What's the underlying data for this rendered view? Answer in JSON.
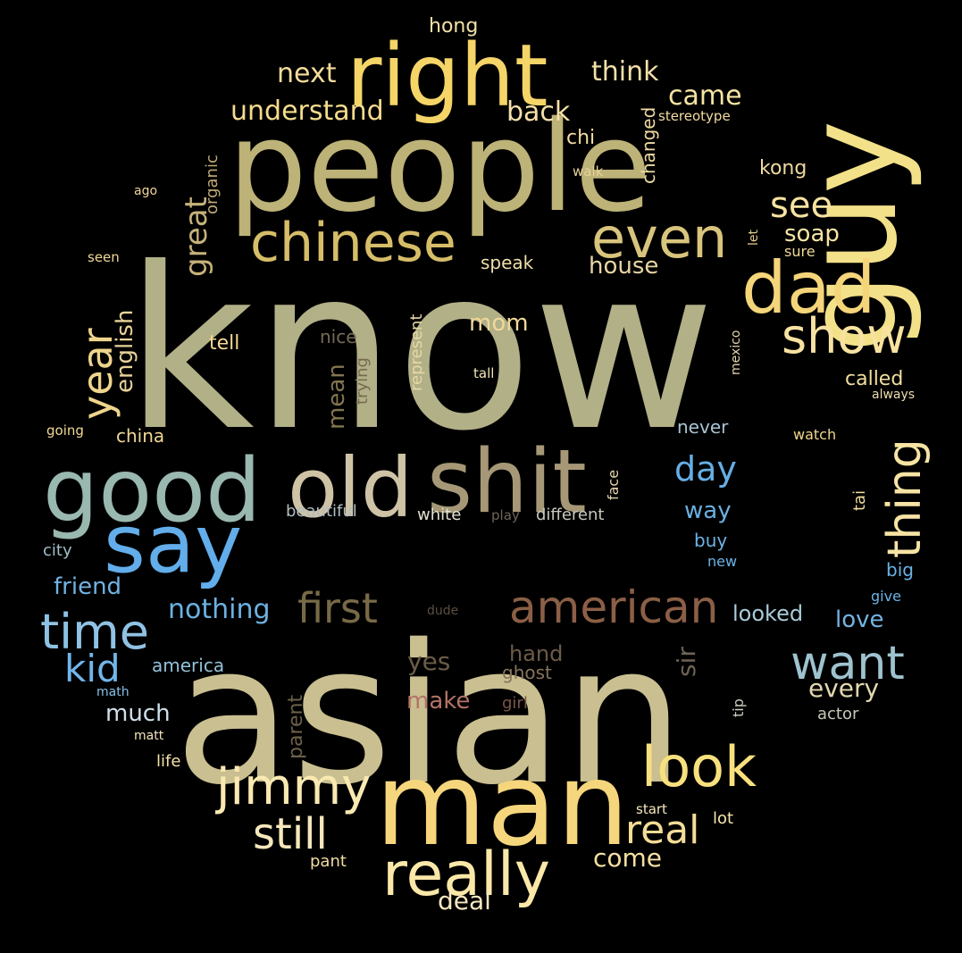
{
  "words": [
    {
      "id": "know",
      "text": "know",
      "color": "#b1b087"
    },
    {
      "id": "asian",
      "text": "asian",
      "color": "#c9bf90"
    },
    {
      "id": "people",
      "text": "people",
      "color": "#bdb277"
    },
    {
      "id": "guy",
      "text": "guy",
      "color": "#f3e18a"
    },
    {
      "id": "man",
      "text": "man",
      "color": "#f5d67c"
    },
    {
      "id": "right",
      "text": "right",
      "color": "#f5d468"
    },
    {
      "id": "good",
      "text": "good",
      "color": "#99b8b0"
    },
    {
      "id": "shit",
      "text": "shit",
      "color": "#a69876"
    },
    {
      "id": "old",
      "text": "old",
      "color": "#cfc3a6"
    },
    {
      "id": "say",
      "text": "say",
      "color": "#62adea"
    },
    {
      "id": "really",
      "text": "really",
      "color": "#fbe8a8"
    },
    {
      "id": "dad",
      "text": "dad",
      "color": "#f5d57a"
    },
    {
      "id": "chinese",
      "text": "chinese",
      "color": "#d6bd68"
    },
    {
      "id": "even",
      "text": "even",
      "color": "#d8c47c"
    },
    {
      "id": "look",
      "text": "look",
      "color": "#f8e07e"
    },
    {
      "id": "jimmy",
      "text": "jimmy",
      "color": "#f9e9b1"
    },
    {
      "id": "american",
      "text": "american",
      "color": "#8b5f46"
    },
    {
      "id": "time",
      "text": "time",
      "color": "#8fc2e4"
    },
    {
      "id": "want",
      "text": "want",
      "color": "#9ec3cf"
    },
    {
      "id": "show",
      "text": "show",
      "color": "#f7e2a1"
    },
    {
      "id": "thing",
      "text": "thing",
      "color": "#f7e4a4"
    },
    {
      "id": "first",
      "text": "first",
      "color": "#786a46"
    },
    {
      "id": "year",
      "text": "year",
      "color": "#eed58c"
    },
    {
      "id": "still",
      "text": "still",
      "color": "#f6e7bb"
    },
    {
      "id": "real",
      "text": "real",
      "color": "#f3dc97"
    },
    {
      "id": "kid",
      "text": "kid",
      "color": "#72b6ea"
    },
    {
      "id": "see",
      "text": "see",
      "color": "#f6e3a1"
    },
    {
      "id": "day",
      "text": "day",
      "color": "#66aee6"
    },
    {
      "id": "great",
      "text": "great",
      "color": "#c6b27a"
    },
    {
      "id": "understand",
      "text": "understand",
      "color": "#f5dc8c"
    },
    {
      "id": "think",
      "text": "think",
      "color": "#f3dfa8"
    },
    {
      "id": "next",
      "text": "next",
      "color": "#f3dc99"
    },
    {
      "id": "came",
      "text": "came",
      "color": "#f5e3a2"
    },
    {
      "id": "back",
      "text": "back",
      "color": "#f3e0a9"
    },
    {
      "id": "nothing",
      "text": "nothing",
      "color": "#6cb1e0"
    },
    {
      "id": "english",
      "text": "english",
      "color": "#e8d29a"
    },
    {
      "id": "every",
      "text": "every",
      "color": "#e2d8af"
    },
    {
      "id": "mom",
      "text": "mom",
      "color": "#f0d99a"
    },
    {
      "id": "mean",
      "text": "mean",
      "color": "#847550"
    },
    {
      "id": "house",
      "text": "house",
      "color": "#e8d5a4"
    },
    {
      "id": "soap",
      "text": "soap",
      "color": "#f8e4a4"
    },
    {
      "id": "much",
      "text": "much",
      "color": "#cfe0ea"
    },
    {
      "id": "friend",
      "text": "friend",
      "color": "#71b3e4"
    },
    {
      "id": "love",
      "text": "love",
      "color": "#73b4e2"
    },
    {
      "id": "come",
      "text": "come",
      "color": "#f4e0a1"
    },
    {
      "id": "deal",
      "text": "deal",
      "color": "#f6e8bf"
    },
    {
      "id": "way",
      "text": "way",
      "color": "#6ab0e2"
    },
    {
      "id": "looked",
      "text": "looked",
      "color": "#a9ccd9"
    },
    {
      "id": "make",
      "text": "make",
      "color": "#b37367"
    },
    {
      "id": "yes",
      "text": "yes",
      "color": "#6a5c47"
    },
    {
      "id": "hand",
      "text": "hand",
      "color": "#6d5b49"
    },
    {
      "id": "sir",
      "text": "sir",
      "color": "#6e6352"
    },
    {
      "id": "kong",
      "text": "kong",
      "color": "#f0d9a0"
    },
    {
      "id": "chi",
      "text": "chi",
      "color": "#f2dca4"
    },
    {
      "id": "hong",
      "text": "hong",
      "color": "#f3e1a8"
    },
    {
      "id": "tell",
      "text": "tell",
      "color": "#f3d790"
    },
    {
      "id": "parent",
      "text": "parent",
      "color": "#6c6149"
    },
    {
      "id": "called",
      "text": "called",
      "color": "#f1df9e"
    },
    {
      "id": "speak",
      "text": "speak",
      "color": "#f1dfaa"
    },
    {
      "id": "ghost",
      "text": "ghost",
      "color": "#85735a"
    },
    {
      "id": "nice",
      "text": "nice",
      "color": "#756a54"
    },
    {
      "id": "changed",
      "text": "changed",
      "color": "#eed9a2"
    },
    {
      "id": "organic",
      "text": "organic",
      "color": "#bfa978"
    },
    {
      "id": "china",
      "text": "china",
      "color": "#efd792"
    },
    {
      "id": "america",
      "text": "america",
      "color": "#94c1da"
    },
    {
      "id": "never",
      "text": "never",
      "color": "#a7c4d6"
    },
    {
      "id": "buy",
      "text": "buy",
      "color": "#6ab3e6"
    },
    {
      "id": "big",
      "text": "big",
      "color": "#6ab3e6"
    },
    {
      "id": "beautiful",
      "text": "beautiful",
      "color": "#b1bcc2"
    },
    {
      "id": "white",
      "text": "white",
      "color": "#e3e1d0"
    },
    {
      "id": "different",
      "text": "different",
      "color": "#c8c7bc"
    },
    {
      "id": "city",
      "text": "city",
      "color": "#a1bfc8"
    },
    {
      "id": "actor",
      "text": "actor",
      "color": "#c8c8b8"
    },
    {
      "id": "represent",
      "text": "represent",
      "color": "#e8d8a5"
    },
    {
      "id": "trying",
      "text": "trying",
      "color": "#766a52"
    },
    {
      "id": "girl",
      "text": "girl",
      "color": "#7a5649"
    },
    {
      "id": "life",
      "text": "life",
      "color": "#f3e1a5"
    },
    {
      "id": "pant",
      "text": "pant",
      "color": "#f1dc9f"
    },
    {
      "id": "lot",
      "text": "lot",
      "color": "#f7e6ad"
    },
    {
      "id": "tai",
      "text": "tai",
      "color": "#f0dc9f"
    },
    {
      "id": "face",
      "text": "face",
      "color": "#e6d6aa"
    },
    {
      "id": "tip",
      "text": "tip",
      "color": "#d1d0c1"
    },
    {
      "id": "new",
      "text": "new",
      "color": "#6ab3e6"
    },
    {
      "id": "give",
      "text": "give",
      "color": "#6ab3e6"
    },
    {
      "id": "watch",
      "text": "watch",
      "color": "#f0d68c"
    },
    {
      "id": "sure",
      "text": "sure",
      "color": "#f0d99a"
    },
    {
      "id": "let",
      "text": "let",
      "color": "#e6cd8b"
    },
    {
      "id": "stereotype",
      "text": "stereotype",
      "color": "#f3dca0"
    },
    {
      "id": "walk",
      "text": "walk",
      "color": "#e6d39b"
    },
    {
      "id": "ago",
      "text": "ago",
      "color": "#f0d69a"
    },
    {
      "id": "seen",
      "text": "seen",
      "color": "#f2d896"
    },
    {
      "id": "going",
      "text": "going",
      "color": "#f3d993"
    },
    {
      "id": "tall",
      "text": "tall",
      "color": "#f3e3b7"
    },
    {
      "id": "mexico",
      "text": "mexico",
      "color": "#e3d4a8"
    },
    {
      "id": "always",
      "text": "always",
      "color": "#efdcb0"
    },
    {
      "id": "play",
      "text": "play",
      "color": "#6e6658"
    },
    {
      "id": "dude",
      "text": "dude",
      "color": "#5b4e3f"
    },
    {
      "id": "math",
      "text": "math",
      "color": "#87c0e6"
    },
    {
      "id": "matt",
      "text": "matt",
      "color": "#f3e5bf"
    },
    {
      "id": "start",
      "text": "start",
      "color": "#f6e7bd"
    }
  ]
}
